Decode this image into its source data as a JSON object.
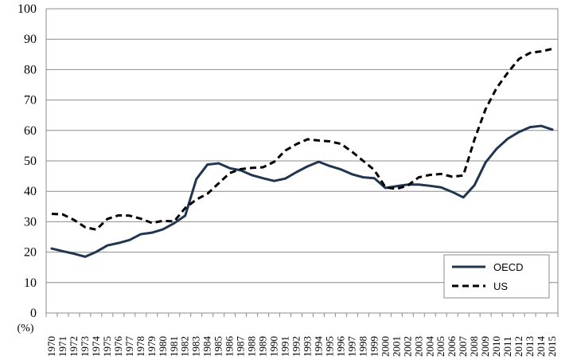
{
  "chart_data": {
    "type": "line",
    "title": "",
    "xlabel": "",
    "ylabel": "",
    "unit_label": "(%)",
    "ylim": [
      0,
      100
    ],
    "y_ticks": [
      0,
      10,
      20,
      30,
      40,
      50,
      60,
      70,
      80,
      90,
      100
    ],
    "grid": true,
    "legend_position": "bottom-right",
    "categories": [
      "1970",
      "1971",
      "1972",
      "1973",
      "1974",
      "1975",
      "1976",
      "1977",
      "1978",
      "1979",
      "1980",
      "1981",
      "1982",
      "1983",
      "1984",
      "1985",
      "1986",
      "1987",
      "1988",
      "1989",
      "1990",
      "1991",
      "1992",
      "1993",
      "1994",
      "1995",
      "1996",
      "1997",
      "1998",
      "1999",
      "2000",
      "2001",
      "2002",
      "2003",
      "2004",
      "2005",
      "2006",
      "2007",
      "2008",
      "2009",
      "2010",
      "2011",
      "2012",
      "2013",
      "2014",
      "2015"
    ],
    "series": [
      {
        "name": "OECD",
        "style": "solid",
        "color": "#1f3550",
        "values": [
          21.2,
          20.3,
          19.5,
          18.5,
          20.1,
          22.2,
          23.0,
          24.0,
          25.9,
          26.4,
          27.5,
          29.5,
          32.0,
          44.0,
          48.8,
          49.2,
          47.6,
          46.9,
          45.3,
          44.3,
          43.4,
          44.2,
          46.3,
          48.2,
          49.7,
          48.3,
          47.2,
          45.6,
          44.6,
          44.3,
          41.1,
          41.7,
          42.2,
          42.2,
          41.8,
          41.3,
          39.8,
          38.0,
          42.0,
          49.5,
          54.0,
          57.3,
          59.5,
          61.1,
          61.5,
          60.3
        ]
      },
      {
        "name": "US",
        "style": "dashed",
        "color": "#000000",
        "values": [
          32.6,
          32.4,
          30.6,
          28.2,
          27.4,
          30.9,
          32.1,
          32.0,
          31.0,
          29.6,
          30.3,
          30.1,
          34.5,
          37.3,
          39.2,
          42.6,
          46.0,
          47.3,
          47.7,
          47.9,
          49.7,
          53.4,
          55.5,
          57.1,
          56.7,
          56.4,
          55.6,
          53.0,
          50.0,
          47.0,
          41.3,
          40.8,
          41.9,
          44.6,
          45.4,
          45.7,
          44.8,
          45.2,
          57.0,
          67.0,
          74.0,
          79.0,
          83.5,
          85.5,
          86.0,
          86.8
        ]
      }
    ]
  }
}
